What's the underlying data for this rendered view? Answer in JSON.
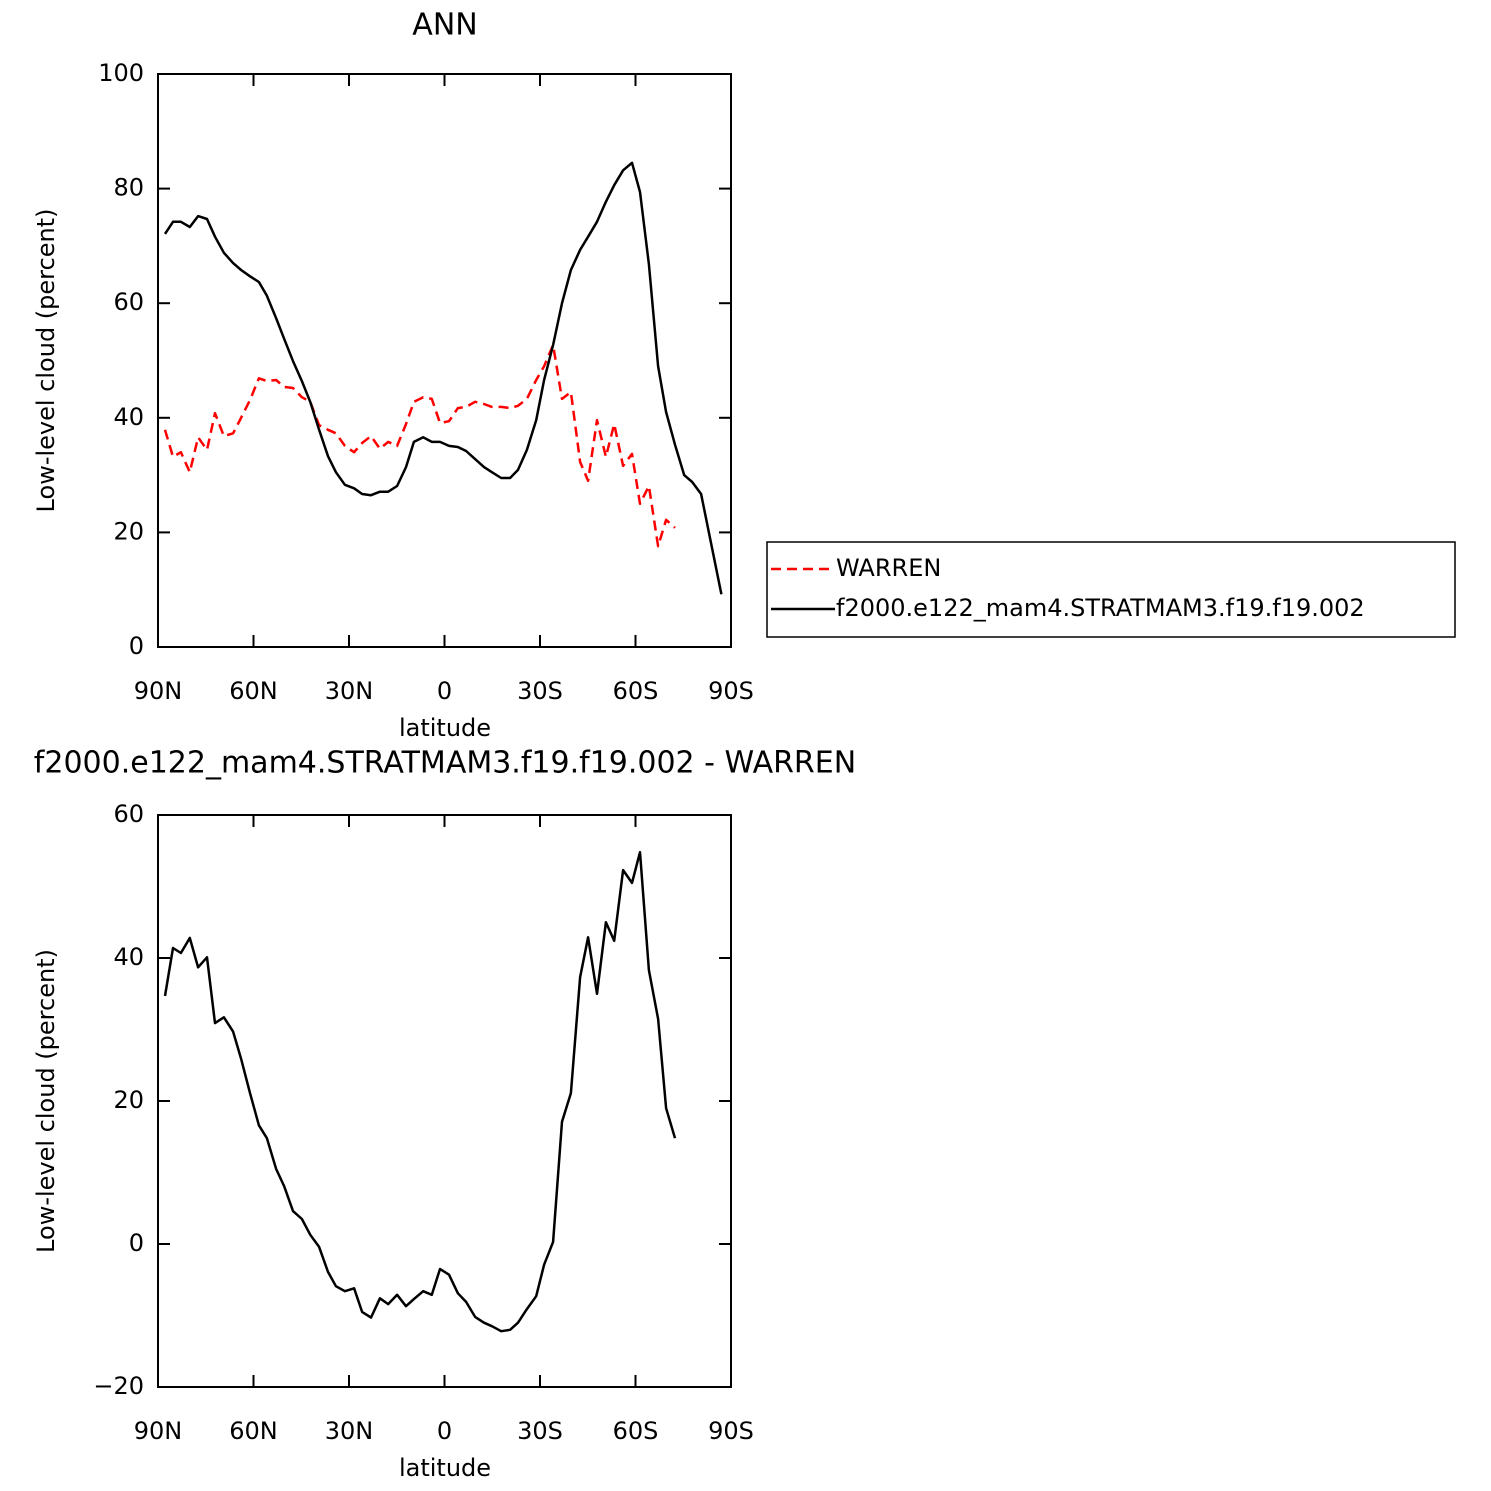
{
  "chart_data": [
    {
      "type": "line",
      "title": "ANN",
      "x_label": "latitude",
      "y_label": "Low-level cloud (percent)",
      "x": [
        87.8,
        85.3,
        82.8,
        80,
        77.4,
        74.6,
        72.1,
        69.3,
        66.4,
        63.9,
        61.1,
        58.3,
        55.8,
        52.9,
        50.4,
        47.6,
        44.8,
        42.2,
        39.4,
        36.6,
        34.1,
        31.3,
        28.4,
        25.9,
        23.1,
        20.3,
        17.7,
        14.9,
        12.1,
        9.6,
        6.7,
        4,
        1.4,
        -1.4,
        -4.2,
        -6.8,
        -9.6,
        -12.4,
        -14.9,
        -17.8,
        -20.6,
        -23.1,
        -25.9,
        -28.8,
        -31.3,
        -34.1,
        -36.9,
        -39.7,
        -42.6,
        -45.1,
        -47.9,
        -50.7,
        -53.3,
        -56.1,
        -58.9,
        -61.4,
        -64.2,
        -67.1,
        -69.6,
        -72.4,
        -75.3,
        -77.8,
        -80.6,
        -87
      ],
      "xlim": [
        90,
        -90
      ],
      "xticks": [
        {
          "value": 90,
          "label": "90N"
        },
        {
          "value": 60,
          "label": "60N"
        },
        {
          "value": 30,
          "label": "30N"
        },
        0,
        {
          "value": -30,
          "label": "30S"
        },
        {
          "value": -60,
          "label": "60S"
        },
        {
          "value": -90,
          "label": "90S"
        }
      ],
      "ylim": [
        0,
        100
      ],
      "yticks": [
        0,
        20,
        40,
        60,
        80,
        100
      ],
      "legend": "right",
      "series": [
        {
          "name": "WARREN",
          "color": "#ff0000",
          "dashed": true,
          "values": [
            37.9,
            33.2,
            34,
            30.5,
            36.6,
            34.4,
            40.8,
            36.8,
            37.3,
            40,
            43.1,
            46.9,
            46.4,
            46.6,
            45.4,
            45.2,
            43.6,
            42.8,
            38.7,
            37.9,
            37.3,
            35.1,
            34,
            35.6,
            36.8,
            34.6,
            35.8,
            35.1,
            38.9,
            42.8,
            43.6,
            43.3,
            39.1,
            39.4,
            41.7,
            41.9,
            42.8,
            42.4,
            41.9,
            41.9,
            41.7,
            42.1,
            43.3,
            46.6,
            49,
            52.7,
            43.3,
            44.5,
            32.3,
            29,
            39.6,
            33.2,
            38.9,
            31.6,
            33.7,
            25,
            28.1,
            17.6,
            22.2,
            20.8,
            null,
            null,
            null,
            null
          ]
        },
        {
          "name": "f2000.e122_mam4.STRATMAM3.f19.f19.002",
          "color": "#000000",
          "dashed": false,
          "values": [
            72.1,
            74.2,
            74.2,
            73.3,
            75.2,
            74.7,
            71.6,
            68.8,
            67,
            65.8,
            64.7,
            63.7,
            61.3,
            57.4,
            53.8,
            49.9,
            46.4,
            42.8,
            37.9,
            33.3,
            30.5,
            28.3,
            27.7,
            26.7,
            26.5,
            27.1,
            27.1,
            28.1,
            31.4,
            35.8,
            36.6,
            35.8,
            35.8,
            35.1,
            34.9,
            34.2,
            32.8,
            31.4,
            30.5,
            29.5,
            29.5,
            30.9,
            34.4,
            39.6,
            46.6,
            52.7,
            60,
            65.8,
            69.3,
            71.6,
            74.2,
            77.7,
            80.6,
            83.2,
            84.5,
            79.4,
            66.8,
            49,
            41,
            35.3,
            30,
            28.8,
            26.7,
            9.2
          ]
        }
      ]
    },
    {
      "type": "line",
      "title": "f2000.e122_mam4.STRATMAM3.f19.f19.002 - WARREN",
      "x_label": "latitude",
      "y_label": "Low-level cloud (percent)",
      "x": [
        87.8,
        85.3,
        82.8,
        80,
        77.4,
        74.6,
        72.1,
        69.3,
        66.4,
        63.9,
        61.1,
        58.3,
        55.8,
        52.9,
        50.4,
        47.6,
        44.8,
        42.2,
        39.4,
        36.6,
        34.1,
        31.3,
        28.4,
        25.9,
        23.1,
        20.3,
        17.7,
        14.9,
        12.1,
        9.6,
        6.7,
        4,
        1.4,
        -1.4,
        -4.2,
        -6.8,
        -9.6,
        -12.4,
        -14.9,
        -17.8,
        -20.6,
        -23.1,
        -25.9,
        -28.8,
        -31.3,
        -34.1,
        -36.9,
        -39.7,
        -42.6,
        -45.1,
        -47.9,
        -50.7,
        -53.3,
        -56.1,
        -58.9,
        -61.4,
        -64.2,
        -67.1,
        -69.6,
        -72.4
      ],
      "xlim": [
        90,
        -90
      ],
      "xticks": [
        {
          "value": 90,
          "label": "90N"
        },
        {
          "value": 60,
          "label": "60N"
        },
        {
          "value": 30,
          "label": "30N"
        },
        0,
        {
          "value": -30,
          "label": "30S"
        },
        {
          "value": -60,
          "label": "60S"
        },
        {
          "value": -90,
          "label": "90S"
        }
      ],
      "ylim": [
        -20,
        60
      ],
      "yticks": [
        {
          "value": -20,
          "label": "−20"
        },
        0,
        20,
        40,
        60
      ],
      "series": [
        {
          "color": "#000000",
          "dashed": false,
          "values": [
            34.7,
            41.4,
            40.7,
            42.8,
            38.7,
            40.1,
            30.9,
            31.7,
            29.7,
            25.9,
            21.1,
            16.6,
            14.8,
            10.5,
            8.1,
            4.6,
            3.5,
            1.3,
            -0.4,
            -3.9,
            -5.9,
            -6.6,
            -6.2,
            -9.5,
            -10.3,
            -7.6,
            -8.4,
            -7.1,
            -8.7,
            -7.7,
            -6.6,
            -7.1,
            -3.5,
            -4.3,
            -6.9,
            -8.1,
            -10.2,
            -11,
            -11.5,
            -12.2,
            -12,
            -11,
            -9.1,
            -7.3,
            -2.9,
            0.3,
            17.1,
            21.1,
            37.3,
            42.9,
            35,
            45,
            42.4,
            52.3,
            50.5,
            54.8,
            38.3,
            31.5,
            19,
            14.8
          ]
        }
      ]
    }
  ]
}
